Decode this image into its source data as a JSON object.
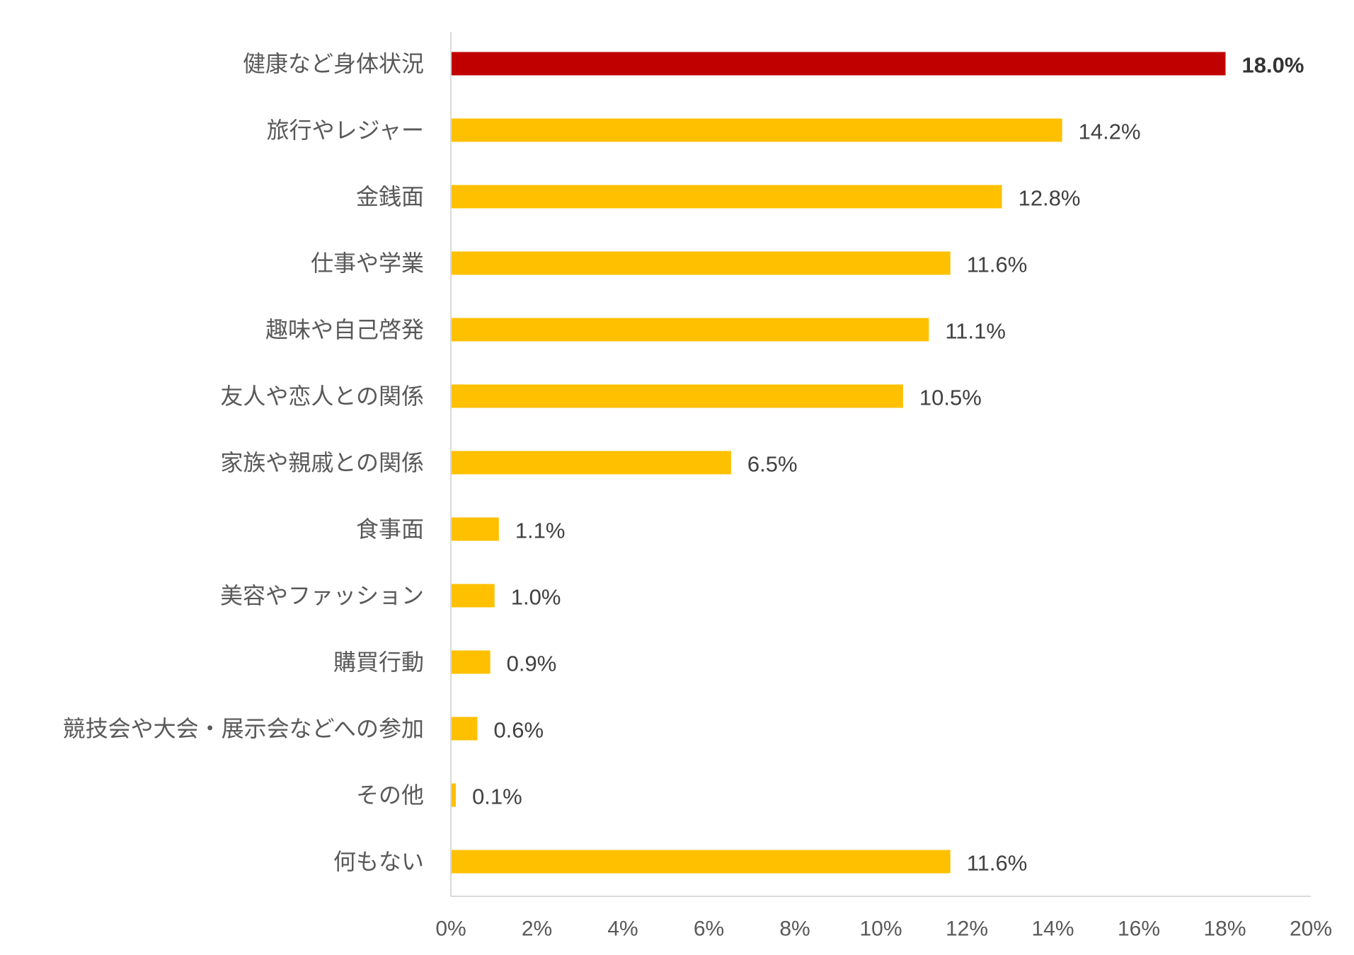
{
  "chart_data": {
    "type": "bar",
    "orientation": "horizontal",
    "categories": [
      "健康など身体状況",
      "旅行やレジャー",
      "金銭面",
      "仕事や学業",
      "趣味や自己啓発",
      "友人や恋人との関係",
      "家族や親戚との関係",
      "食事面",
      "美容やファッション",
      "購買行動",
      "競技会や大会・展示会などへの参加",
      "その他",
      "何もない"
    ],
    "values": [
      18.0,
      14.2,
      12.8,
      11.6,
      11.1,
      10.5,
      6.5,
      1.1,
      1.0,
      0.9,
      0.6,
      0.1,
      11.6
    ],
    "value_labels": [
      "18.0%",
      "14.2%",
      "12.8%",
      "11.6%",
      "11.1%",
      "10.5%",
      "6.5%",
      "1.1%",
      "1.0%",
      "0.9%",
      "0.6%",
      "0.1%",
      "11.6%"
    ],
    "highlight_index": 0,
    "xlim": [
      0,
      20
    ],
    "x_ticks": [
      0,
      2,
      4,
      6,
      8,
      10,
      12,
      14,
      16,
      18,
      20
    ],
    "x_tick_labels": [
      "0%",
      "2%",
      "4%",
      "6%",
      "8%",
      "10%",
      "12%",
      "14%",
      "16%",
      "18%",
      "20%"
    ],
    "grid": false,
    "legend": "none",
    "colors": {
      "bar": "#FFC000",
      "highlight": "#C00000"
    }
  }
}
